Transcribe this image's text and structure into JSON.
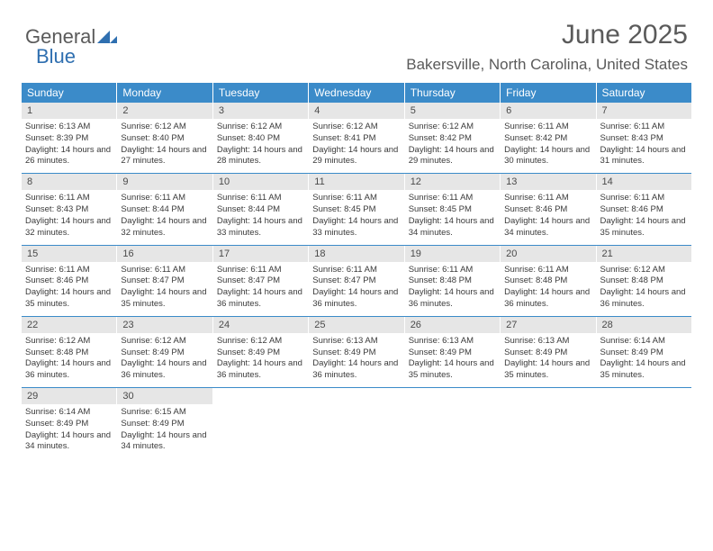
{
  "logo": {
    "text_general": "General",
    "text_blue": "Blue"
  },
  "title": "June 2025",
  "location": "Bakersville, North Carolina, United States",
  "colors": {
    "header": "#3b8bc9",
    "daynum_bg": "#e6e6e6",
    "text": "#5a5a5a",
    "logo_blue": "#2f6fb0"
  },
  "weekdays": [
    "Sunday",
    "Monday",
    "Tuesday",
    "Wednesday",
    "Thursday",
    "Friday",
    "Saturday"
  ],
  "weeks": [
    [
      {
        "n": "1",
        "sr": "6:13 AM",
        "ss": "8:39 PM",
        "dl": "14 hours and 26 minutes."
      },
      {
        "n": "2",
        "sr": "6:12 AM",
        "ss": "8:40 PM",
        "dl": "14 hours and 27 minutes."
      },
      {
        "n": "3",
        "sr": "6:12 AM",
        "ss": "8:40 PM",
        "dl": "14 hours and 28 minutes."
      },
      {
        "n": "4",
        "sr": "6:12 AM",
        "ss": "8:41 PM",
        "dl": "14 hours and 29 minutes."
      },
      {
        "n": "5",
        "sr": "6:12 AM",
        "ss": "8:42 PM",
        "dl": "14 hours and 29 minutes."
      },
      {
        "n": "6",
        "sr": "6:11 AM",
        "ss": "8:42 PM",
        "dl": "14 hours and 30 minutes."
      },
      {
        "n": "7",
        "sr": "6:11 AM",
        "ss": "8:43 PM",
        "dl": "14 hours and 31 minutes."
      }
    ],
    [
      {
        "n": "8",
        "sr": "6:11 AM",
        "ss": "8:43 PM",
        "dl": "14 hours and 32 minutes."
      },
      {
        "n": "9",
        "sr": "6:11 AM",
        "ss": "8:44 PM",
        "dl": "14 hours and 32 minutes."
      },
      {
        "n": "10",
        "sr": "6:11 AM",
        "ss": "8:44 PM",
        "dl": "14 hours and 33 minutes."
      },
      {
        "n": "11",
        "sr": "6:11 AM",
        "ss": "8:45 PM",
        "dl": "14 hours and 33 minutes."
      },
      {
        "n": "12",
        "sr": "6:11 AM",
        "ss": "8:45 PM",
        "dl": "14 hours and 34 minutes."
      },
      {
        "n": "13",
        "sr": "6:11 AM",
        "ss": "8:46 PM",
        "dl": "14 hours and 34 minutes."
      },
      {
        "n": "14",
        "sr": "6:11 AM",
        "ss": "8:46 PM",
        "dl": "14 hours and 35 minutes."
      }
    ],
    [
      {
        "n": "15",
        "sr": "6:11 AM",
        "ss": "8:46 PM",
        "dl": "14 hours and 35 minutes."
      },
      {
        "n": "16",
        "sr": "6:11 AM",
        "ss": "8:47 PM",
        "dl": "14 hours and 35 minutes."
      },
      {
        "n": "17",
        "sr": "6:11 AM",
        "ss": "8:47 PM",
        "dl": "14 hours and 36 minutes."
      },
      {
        "n": "18",
        "sr": "6:11 AM",
        "ss": "8:47 PM",
        "dl": "14 hours and 36 minutes."
      },
      {
        "n": "19",
        "sr": "6:11 AM",
        "ss": "8:48 PM",
        "dl": "14 hours and 36 minutes."
      },
      {
        "n": "20",
        "sr": "6:11 AM",
        "ss": "8:48 PM",
        "dl": "14 hours and 36 minutes."
      },
      {
        "n": "21",
        "sr": "6:12 AM",
        "ss": "8:48 PM",
        "dl": "14 hours and 36 minutes."
      }
    ],
    [
      {
        "n": "22",
        "sr": "6:12 AM",
        "ss": "8:48 PM",
        "dl": "14 hours and 36 minutes."
      },
      {
        "n": "23",
        "sr": "6:12 AM",
        "ss": "8:49 PM",
        "dl": "14 hours and 36 minutes."
      },
      {
        "n": "24",
        "sr": "6:12 AM",
        "ss": "8:49 PM",
        "dl": "14 hours and 36 minutes."
      },
      {
        "n": "25",
        "sr": "6:13 AM",
        "ss": "8:49 PM",
        "dl": "14 hours and 36 minutes."
      },
      {
        "n": "26",
        "sr": "6:13 AM",
        "ss": "8:49 PM",
        "dl": "14 hours and 35 minutes."
      },
      {
        "n": "27",
        "sr": "6:13 AM",
        "ss": "8:49 PM",
        "dl": "14 hours and 35 minutes."
      },
      {
        "n": "28",
        "sr": "6:14 AM",
        "ss": "8:49 PM",
        "dl": "14 hours and 35 minutes."
      }
    ],
    [
      {
        "n": "29",
        "sr": "6:14 AM",
        "ss": "8:49 PM",
        "dl": "14 hours and 34 minutes."
      },
      {
        "n": "30",
        "sr": "6:15 AM",
        "ss": "8:49 PM",
        "dl": "14 hours and 34 minutes."
      },
      null,
      null,
      null,
      null,
      null
    ]
  ],
  "labels": {
    "sunrise": "Sunrise: ",
    "sunset": "Sunset: ",
    "daylight": "Daylight: "
  }
}
